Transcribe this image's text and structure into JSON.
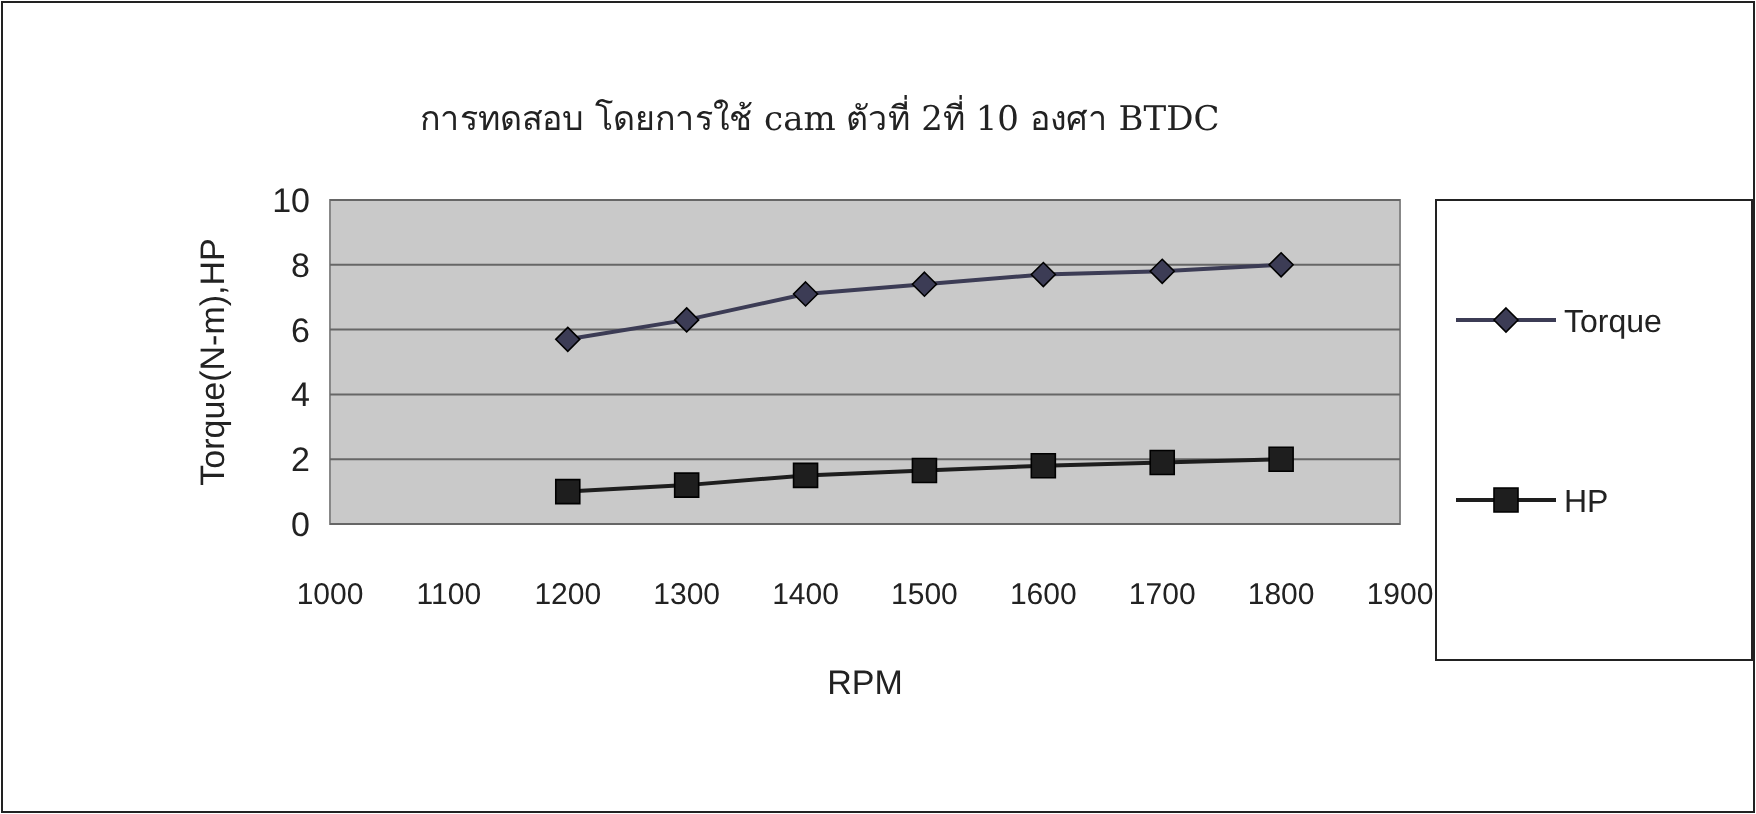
{
  "chart_data": {
    "type": "line",
    "title": "การทดสอบ โดยการใช้  cam ตัวที่ 2ที่ 10 องศา BTDC",
    "xlabel": "RPM",
    "ylabel": "Torque(N-m),HP",
    "x": [
      1200,
      1300,
      1400,
      1500,
      1600,
      1700,
      1800
    ],
    "series": [
      {
        "name": "Torque",
        "color": "#3c3c55",
        "marker": "diamond",
        "values": [
          5.7,
          6.3,
          7.1,
          7.4,
          7.7,
          7.8,
          8.0
        ]
      },
      {
        "name": "HP",
        "color": "#1e1e1e",
        "marker": "square",
        "values": [
          1.0,
          1.2,
          1.5,
          1.65,
          1.8,
          1.9,
          2.0
        ]
      }
    ],
    "xlim": [
      1000,
      1900
    ],
    "xticks": [
      1000,
      1100,
      1200,
      1300,
      1400,
      1500,
      1600,
      1700,
      1800,
      1900
    ],
    "ylim": [
      0,
      10
    ],
    "yticks": [
      0,
      2,
      4,
      6,
      8,
      10
    ],
    "grid": "y",
    "legend": "right"
  }
}
